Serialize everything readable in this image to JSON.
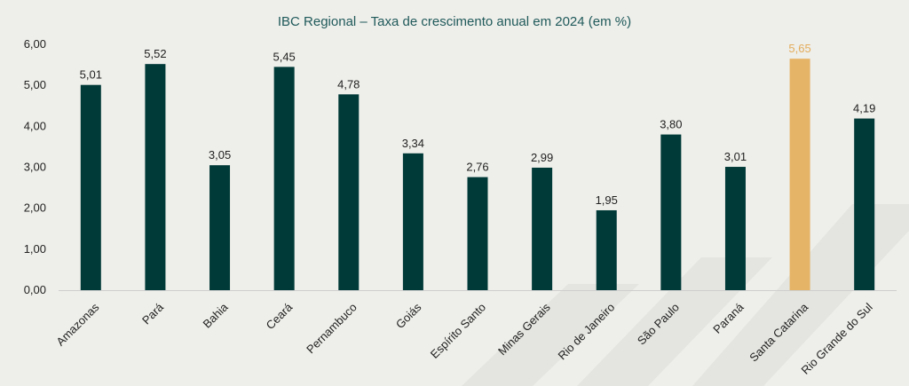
{
  "chart_data": {
    "type": "bar",
    "title": "IBC Regional – Taxa de crescimento anual em 2024 (em %)",
    "categories": [
      "Amazonas",
      "Pará",
      "Bahia",
      "Ceará",
      "Pernambuco",
      "Goiás",
      "Espírito Santo",
      "Minas Gerais",
      "Rio de Janeiro",
      "São Paulo",
      "Paraná",
      "Santa Catarina",
      "Rio Grande do Sul"
    ],
    "values": [
      5.01,
      5.52,
      3.05,
      5.45,
      4.78,
      3.34,
      2.76,
      2.99,
      1.95,
      3.8,
      3.01,
      5.65,
      4.19
    ],
    "value_labels": [
      "5,01",
      "5,52",
      "3,05",
      "5,45",
      "4,78",
      "3,34",
      "2,76",
      "2,99",
      "1,95",
      "3,80",
      "3,01",
      "5,65",
      "4,19"
    ],
    "ylim": [
      0,
      6
    ],
    "yticks": [
      0,
      1,
      2,
      3,
      4,
      5,
      6
    ],
    "ytick_labels": [
      "0,00",
      "1,00",
      "2,00",
      "3,00",
      "4,00",
      "5,00",
      "6,00"
    ],
    "xlabel": "",
    "ylabel": "",
    "grid": false,
    "highlight_index": 11,
    "colors": {
      "bar": "#003a38",
      "highlight": "#e6b466",
      "highlight_label": "#e3ad5c",
      "axis": "#cfcfcf",
      "title": "#1f5a5a",
      "background": "#eeeeea",
      "watermark": "#e4e4e0"
    }
  }
}
